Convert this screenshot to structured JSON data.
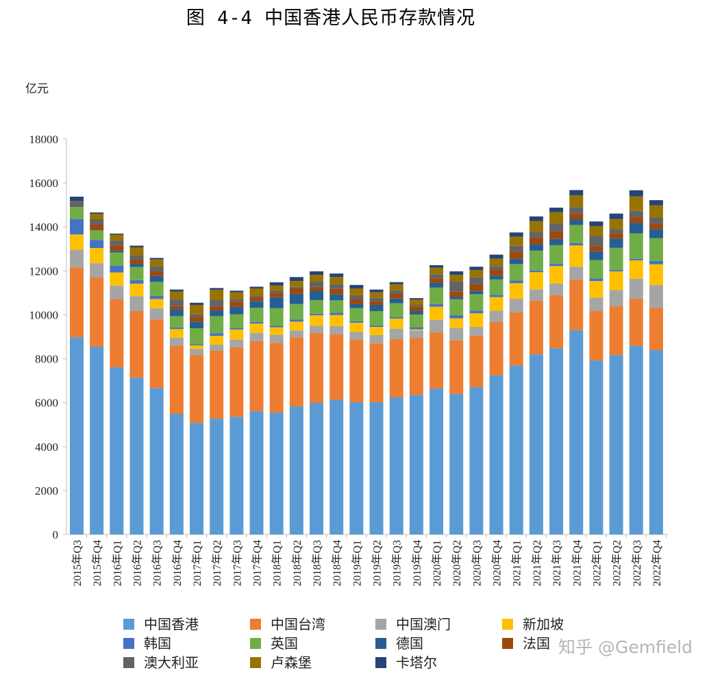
{
  "title": "图 4-4  中国香港人民币存款情况",
  "watermark": "知乎 @Gemfield",
  "chart_data": {
    "type": "bar",
    "stacked": true,
    "title": "图 4-4  中国香港人民币存款情况",
    "ylabel": "亿元",
    "xlabel": "",
    "ylim": [
      0,
      18000
    ],
    "yticks": [
      "0",
      "2000",
      "4000",
      "6000",
      "8000",
      "10000",
      "12000",
      "14000",
      "16000",
      "18000"
    ],
    "grid": false,
    "legend_position": "bottom",
    "categories": [
      "2015年Q3",
      "2015年Q4",
      "2016年Q1",
      "2016年Q2",
      "2016年Q3",
      "2016年Q4",
      "2017年Q1",
      "2017年Q2",
      "2017年Q3",
      "2017年Q4",
      "2018年Q1",
      "2018年Q2",
      "2018年Q3",
      "2018年Q4",
      "2019年Q1",
      "2019年Q2",
      "2019年Q3",
      "2019年Q4",
      "2020年Q1",
      "2020年Q2",
      "2020年Q3",
      "2020年Q4",
      "2021年Q1",
      "2021年Q2",
      "2021年Q3",
      "2021年Q4",
      "2022年Q1",
      "2022年Q2",
      "2022年Q3",
      "2022年Q4"
    ],
    "series": [
      {
        "name": "中国香港",
        "color": "#5b9bd5",
        "values": [
          8980,
          8550,
          7610,
          7140,
          6670,
          5490,
          5080,
          5270,
          5360,
          5610,
          5550,
          5830,
          5990,
          6140,
          6020,
          6020,
          6240,
          6360,
          6640,
          6390,
          6710,
          7240,
          7700,
          8200,
          8480,
          9300,
          7920,
          8170,
          8580,
          8390
        ]
      },
      {
        "name": "中国台湾",
        "color": "#ed7d31",
        "values": [
          3180,
          3150,
          3090,
          3030,
          3120,
          3090,
          3090,
          3090,
          3160,
          3190,
          3180,
          3150,
          3180,
          2970,
          2840,
          2680,
          2650,
          2590,
          2560,
          2440,
          2340,
          2430,
          2410,
          2440,
          2410,
          2300,
          2250,
          2220,
          2150,
          1930
        ]
      },
      {
        "name": "中国澳门",
        "color": "#a5a5a5",
        "values": [
          810,
          650,
          630,
          680,
          510,
          380,
          280,
          280,
          360,
          380,
          360,
          310,
          330,
          380,
          360,
          380,
          480,
          340,
          570,
          570,
          400,
          520,
          620,
          520,
          540,
          590,
          610,
          730,
          910,
          1040
        ]
      },
      {
        "name": "新加坡",
        "color": "#ffc000",
        "values": [
          690,
          690,
          600,
          570,
          420,
          390,
          160,
          400,
          450,
          420,
          340,
          400,
          480,
          500,
          420,
          370,
          460,
          50,
          600,
          440,
          620,
          620,
          710,
          780,
          790,
          970,
          760,
          860,
          840,
          940
        ]
      },
      {
        "name": "韩国",
        "color": "#4472c4",
        "values": [
          690,
          370,
          310,
          160,
          140,
          70,
          50,
          120,
          70,
          80,
          70,
          100,
          70,
          100,
          70,
          70,
          60,
          100,
          120,
          140,
          120,
          100,
          120,
          80,
          100,
          100,
          120,
          70,
          70,
          150
        ]
      },
      {
        "name": "英国",
        "color": "#70ad47",
        "values": [
          560,
          440,
          600,
          600,
          640,
          520,
          730,
          780,
          620,
          640,
          800,
          700,
          620,
          570,
          600,
          650,
          640,
          570,
          750,
          730,
          750,
          700,
          750,
          900,
          850,
          830,
          830,
          1000,
          1160,
          1040
        ]
      },
      {
        "name": "德国",
        "color": "#255e91",
        "values": [
          0,
          0,
          80,
          140,
          270,
          310,
          290,
          260,
          340,
          310,
          500,
          470,
          420,
          280,
          190,
          280,
          210,
          160,
          210,
          100,
          140,
          170,
          240,
          290,
          280,
          260,
          400,
          420,
          470,
          420
        ]
      },
      {
        "name": "法国",
        "color": "#9e480e",
        "values": [
          0,
          250,
          250,
          190,
          210,
          160,
          210,
          180,
          240,
          190,
          210,
          240,
          180,
          240,
          200,
          160,
          210,
          210,
          210,
          240,
          310,
          280,
          330,
          310,
          340,
          260,
          230,
          250,
          260,
          240
        ]
      },
      {
        "name": "澳大利亚",
        "color": "#636363",
        "values": [
          280,
          250,
          210,
          200,
          230,
          310,
          130,
          290,
          120,
          50,
          100,
          70,
          240,
          230,
          190,
          160,
          160,
          70,
          190,
          460,
          310,
          160,
          260,
          260,
          360,
          290,
          480,
          190,
          290,
          280
        ]
      },
      {
        "name": "卢森堡",
        "color": "#997300",
        "values": [
          0,
          250,
          270,
          360,
          310,
          340,
          430,
          470,
          310,
          330,
          230,
          270,
          310,
          310,
          310,
          260,
          280,
          240,
          290,
          310,
          340,
          340,
          420,
          490,
          520,
          540,
          440,
          450,
          660,
          550
        ]
      },
      {
        "name": "卡塔尔",
        "color": "#264478",
        "values": [
          190,
          60,
          50,
          80,
          70,
          90,
          100,
          80,
          70,
          80,
          140,
          180,
          160,
          160,
          160,
          120,
          100,
          70,
          120,
          160,
          150,
          180,
          190,
          210,
          210,
          240,
          210,
          250,
          280,
          240
        ]
      }
    ]
  }
}
